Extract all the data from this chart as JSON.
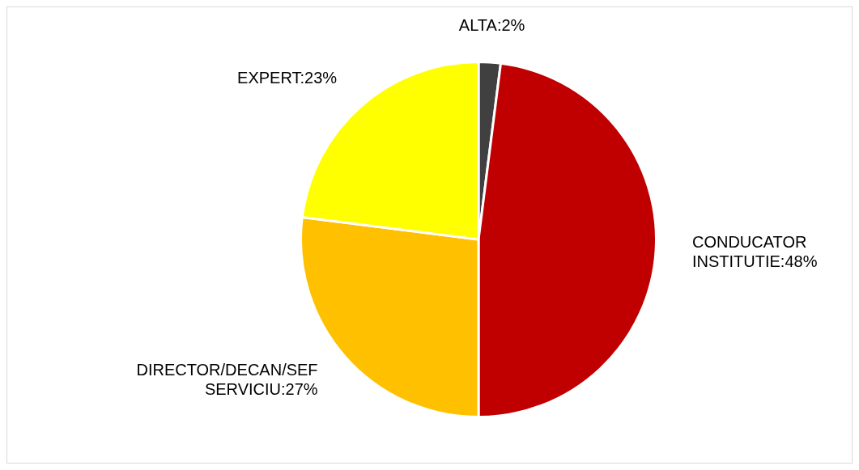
{
  "chart_data": {
    "type": "pie",
    "categories": [
      "ALTA",
      "CONDUCATOR INSTITUTIE",
      "DIRECTOR/DECAN/SEF SERVICIU",
      "EXPERT"
    ],
    "values": [
      2,
      48,
      27,
      23
    ],
    "colors": [
      "#404040",
      "#c00000",
      "#ffc000",
      "#ffff00"
    ],
    "value_labels": [
      "2%",
      "48%",
      "27%",
      "23%"
    ],
    "legend": false
  }
}
